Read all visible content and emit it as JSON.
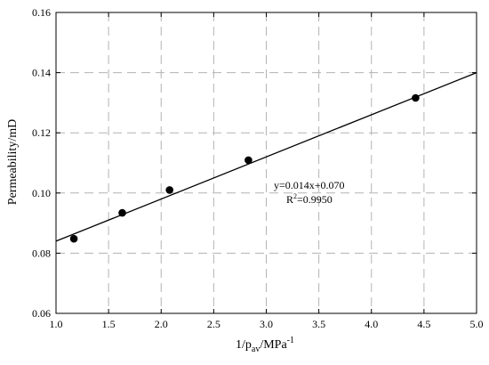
{
  "chart_data": {
    "type": "scatter",
    "xlabel": "1/p",
    "xlabel_sub": "av",
    "xlabel_unit": "/MPa",
    "xlabel_sup": "-1",
    "ylabel": "Permeability/mD",
    "xlim": [
      1.0,
      5.0
    ],
    "ylim": [
      0.06,
      0.16
    ],
    "xticks": [
      "1.0",
      "1.5",
      "2.0",
      "2.5",
      "3.0",
      "3.5",
      "4.0",
      "4.5",
      "5.0"
    ],
    "yticks": [
      "0.06",
      "0.08",
      "0.10",
      "0.12",
      "0.14",
      "0.16"
    ],
    "xtick_values": [
      1.0,
      1.5,
      2.0,
      2.5,
      3.0,
      3.5,
      4.0,
      4.5,
      5.0
    ],
    "ytick_values": [
      0.06,
      0.08,
      0.1,
      0.12,
      0.14,
      0.16
    ],
    "grid": true,
    "series": [
      {
        "x": [
          1.17,
          1.63,
          2.08,
          2.83,
          4.42
        ],
        "y": [
          0.0848,
          0.0934,
          0.101,
          0.1109,
          0.1316
        ]
      }
    ],
    "fit_line": {
      "slope": 0.014,
      "intercept": 0.07,
      "x_range": [
        1.0,
        5.0
      ]
    },
    "annotation": {
      "equation": "y=0.014x+0.070",
      "r2_prefix": "R",
      "r2_sup": "2",
      "r2_value": "=0.9950"
    }
  }
}
